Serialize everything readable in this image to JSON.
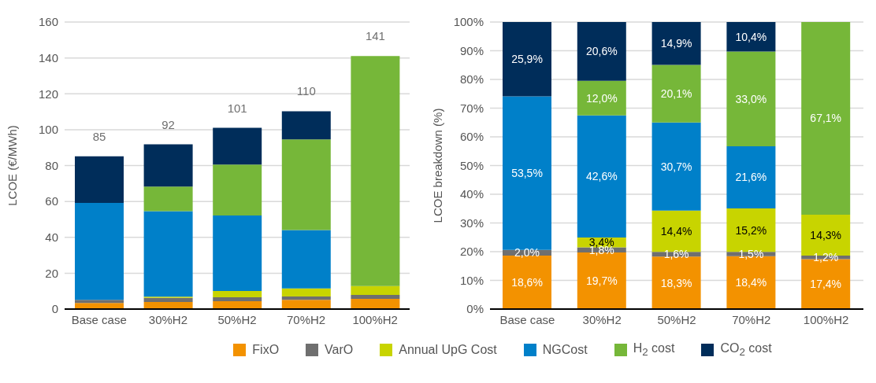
{
  "chart_data": [
    {
      "type": "bar",
      "stacked": true,
      "ylabel": "LCOE (€/MWh)",
      "categories": [
        "Base case",
        "30%H2",
        "50%H2",
        "70%H2",
        "100%H2"
      ],
      "ylim": [
        0,
        160
      ],
      "yticks": [
        0,
        20,
        40,
        60,
        80,
        100,
        120,
        140,
        160
      ],
      "grid": "y",
      "legend": "bottom",
      "totals": [
        "85",
        "92",
        "101",
        "110",
        "141"
      ],
      "series": [
        {
          "name": "FixO",
          "color": "#f39200",
          "values": [
            3.4,
            4.0,
            4.4,
            5.2,
            5.7
          ]
        },
        {
          "name": "VarO",
          "color": "#6f6f6f",
          "values": [
            1.7,
            2.2,
            2.2,
            1.8,
            2.2
          ]
        },
        {
          "name": "Annual UpG Cost",
          "color": "#c8d400",
          "values": [
            0,
            0.7,
            3.5,
            4.5,
            4.9
          ]
        },
        {
          "name": "NGCost",
          "color": "#0080c9",
          "values": [
            54.1,
            47.7,
            42.1,
            32.6,
            0
          ]
        },
        {
          "name": "H$_{2}$ cost",
          "color": "#76b739",
          "values": [
            0,
            13.7,
            28.3,
            50.5,
            128.2
          ]
        },
        {
          "name": "CO$_{2}$ cost",
          "color": "#002d5a",
          "values": [
            26,
            23.5,
            20.5,
            15.7,
            0
          ]
        }
      ]
    },
    {
      "type": "bar",
      "stacked": true,
      "ylabel": "LCOE breakdown (%)",
      "categories": [
        "Base case",
        "30%H2",
        "50%H2",
        "70%H2",
        "100%H2"
      ],
      "ylim": [
        0,
        100
      ],
      "yticks": [
        {
          "value": 0,
          "label": "0%"
        },
        {
          "value": 10,
          "label": "10%"
        },
        {
          "value": 20,
          "label": "20%"
        },
        {
          "value": 30,
          "label": "30%"
        },
        {
          "value": 40,
          "label": "40%"
        },
        {
          "value": 50,
          "label": "50%"
        },
        {
          "value": 60,
          "label": "60%"
        },
        {
          "value": 70,
          "label": "70%"
        },
        {
          "value": 80,
          "label": "80%"
        },
        {
          "value": 90,
          "label": "90%"
        },
        {
          "value": 100,
          "label": "100%"
        }
      ],
      "grid": "y",
      "series": [
        {
          "color": "#f39200",
          "values": [
            18.6,
            19.7,
            18.3,
            18.4,
            17.4
          ],
          "value_labels": [
            "18,6%",
            "19,7%",
            "18,3%",
            "18,4%",
            "17,4%"
          ]
        },
        {
          "color": "#6f6f6f",
          "values": [
            2.0,
            1.8,
            1.6,
            1.5,
            1.2
          ],
          "value_labels": [
            "2,0%",
            "1,8%",
            "1,6%",
            "1,5%",
            "1,2%"
          ]
        },
        {
          "color": "#c8d400",
          "values": [
            0,
            3.4,
            14.4,
            15.2,
            14.3
          ],
          "value_labels": [
            null,
            "3,4%",
            "14,4%",
            "15,2%",
            "14,3%"
          ]
        },
        {
          "color": "#0080c9",
          "values": [
            53.5,
            42.6,
            30.7,
            21.6,
            0
          ],
          "value_labels": [
            "53,5%",
            "42,6%",
            "30,7%",
            "21,6%",
            null
          ]
        },
        {
          "color": "#76b739",
          "values": [
            0,
            12.0,
            20.1,
            33.0,
            67.1
          ],
          "value_labels": [
            null,
            "12,0%",
            "20,1%",
            "33,0%",
            "67,1%"
          ]
        },
        {
          "color": "#002d5a",
          "values": [
            25.9,
            20.6,
            14.9,
            10.4,
            0
          ],
          "value_labels": [
            "25,9%",
            "20,6%",
            "14,9%",
            "10,4%",
            null
          ]
        }
      ]
    }
  ]
}
